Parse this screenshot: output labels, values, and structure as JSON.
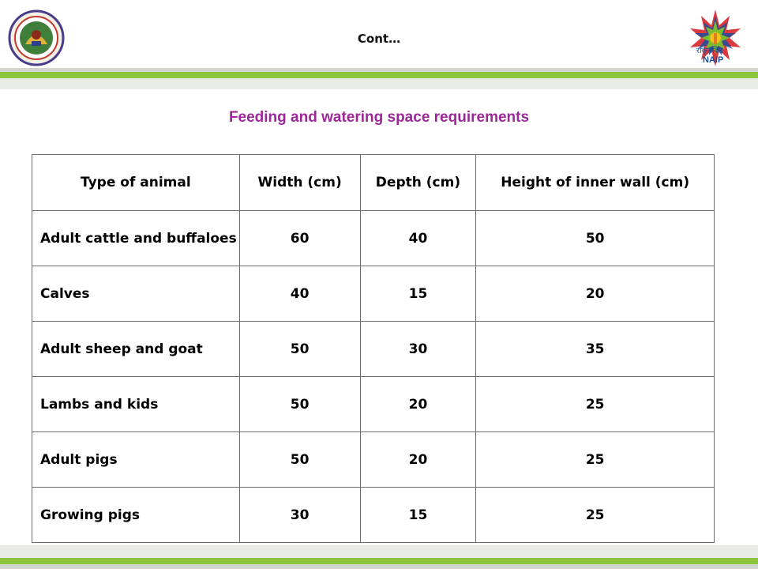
{
  "header": {
    "label": "Cont…",
    "left_logo_icon": "institute-emblem-icon",
    "right_logo_icon": "naip-star-logo-icon",
    "right_logo_text": "NAIP",
    "right_logo_hindi": "राकृनविप"
  },
  "slide": {
    "title": "Feeding and watering space requirements"
  },
  "table": {
    "headers": [
      "Type of animal",
      "Width (cm)",
      "Depth (cm)",
      "Height of inner wall (cm)"
    ],
    "rows": [
      [
        "Adult cattle and buffaloes",
        "60",
        "40",
        "50"
      ],
      [
        "Calves",
        "40",
        "15",
        "20"
      ],
      [
        "Adult sheep and goat",
        "50",
        "30",
        "35"
      ],
      [
        "Lambs and kids",
        "50",
        "20",
        "25"
      ],
      [
        "Adult pigs",
        "50",
        "20",
        "25"
      ],
      [
        "Growing pigs",
        "30",
        "15",
        "25"
      ]
    ]
  },
  "colors": {
    "accent_green": "#8cc63f",
    "title_purple": "#9c2798"
  }
}
